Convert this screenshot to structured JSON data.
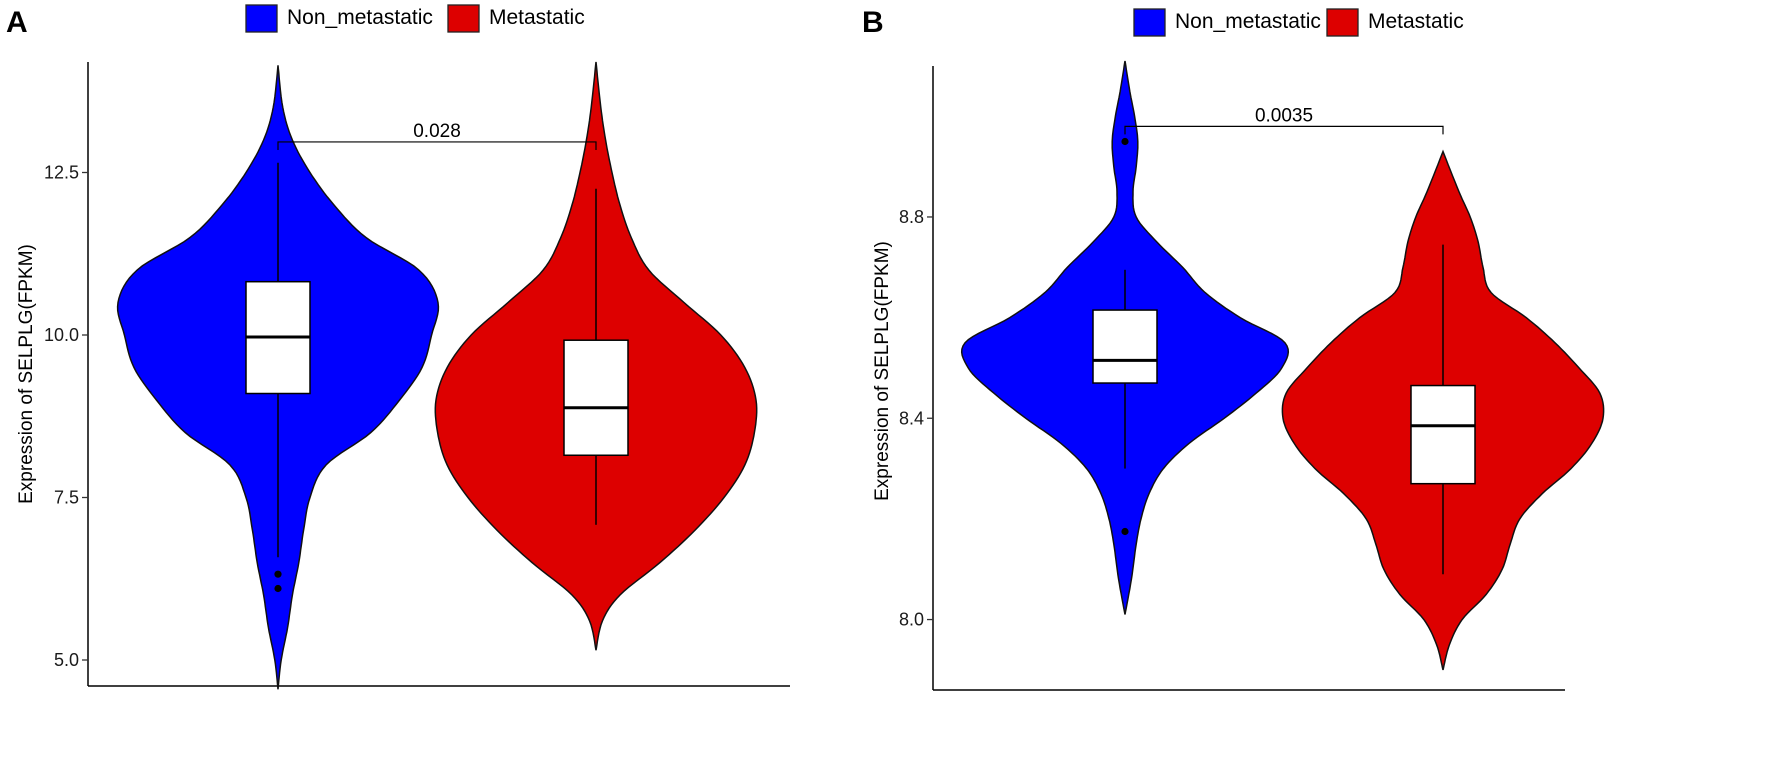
{
  "chart_data": [
    {
      "type": "violin",
      "panel": "A",
      "ylabel": "Expression of SELPLG(FPKM)",
      "yticks": [
        "5.0",
        "7.5",
        "10.0",
        "12.5"
      ],
      "ytick_values": [
        5.0,
        7.5,
        10.0,
        12.5
      ],
      "ylim": [
        4.6,
        14.2
      ],
      "legend": {
        "position": "top-center",
        "entries": [
          {
            "name": "Non_metastatic",
            "color": "#0000ff"
          },
          {
            "name": "Metastatic",
            "color": "#dd0000"
          }
        ]
      },
      "groups": [
        {
          "name": "Non_metastatic",
          "color": "#0000ff",
          "box": {
            "q1": 9.1,
            "median": 9.97,
            "q3": 10.82,
            "whisker_low": 6.58,
            "whisker_high": 12.65
          },
          "outliers": [
            6.32,
            6.1
          ],
          "density_range": [
            4.55,
            14.15
          ],
          "density": [
            [
              4.55,
              0.0
            ],
            [
              5.0,
              0.02
            ],
            [
              5.5,
              0.06
            ],
            [
              6.0,
              0.09
            ],
            [
              6.5,
              0.13
            ],
            [
              7.0,
              0.16
            ],
            [
              7.5,
              0.2
            ],
            [
              8.0,
              0.3
            ],
            [
              8.5,
              0.58
            ],
            [
              9.0,
              0.76
            ],
            [
              9.5,
              0.9
            ],
            [
              10.0,
              0.96
            ],
            [
              10.5,
              1.0
            ],
            [
              11.0,
              0.88
            ],
            [
              11.5,
              0.55
            ],
            [
              12.0,
              0.35
            ],
            [
              12.5,
              0.2
            ],
            [
              13.0,
              0.09
            ],
            [
              13.5,
              0.03
            ],
            [
              14.15,
              0.0
            ]
          ],
          "max_half_width_frac": 0.5
        },
        {
          "name": "Metastatic",
          "color": "#dd0000",
          "box": {
            "q1": 8.15,
            "median": 8.88,
            "q3": 9.92,
            "whisker_low": 7.08,
            "whisker_high": 12.25
          },
          "outliers": [],
          "density_range": [
            5.15,
            14.2
          ],
          "density": [
            [
              5.15,
              0.0
            ],
            [
              5.6,
              0.04
            ],
            [
              6.0,
              0.15
            ],
            [
              6.5,
              0.4
            ],
            [
              7.0,
              0.62
            ],
            [
              7.5,
              0.8
            ],
            [
              8.0,
              0.93
            ],
            [
              8.5,
              0.99
            ],
            [
              9.0,
              1.0
            ],
            [
              9.5,
              0.93
            ],
            [
              10.0,
              0.78
            ],
            [
              10.5,
              0.55
            ],
            [
              11.0,
              0.33
            ],
            [
              11.5,
              0.22
            ],
            [
              12.0,
              0.15
            ],
            [
              12.5,
              0.1
            ],
            [
              13.0,
              0.06
            ],
            [
              13.5,
              0.03
            ],
            [
              14.2,
              0.0
            ]
          ],
          "max_half_width_frac": 0.5
        }
      ],
      "comparison": {
        "label": "0.028",
        "y": 12.97
      }
    },
    {
      "type": "violin",
      "panel": "B",
      "ylabel": "Expression of SELPLG(FPKM)",
      "yticks": [
        "8.0",
        "8.4",
        "8.8"
      ],
      "ytick_values": [
        8.0,
        8.4,
        8.8
      ],
      "ylim": [
        7.86,
        9.1
      ],
      "legend": {
        "position": "top-center",
        "entries": [
          {
            "name": "Non_metastatic",
            "color": "#0000ff"
          },
          {
            "name": "Metastatic",
            "color": "#dd0000"
          }
        ]
      },
      "groups": [
        {
          "name": "Non_metastatic",
          "color": "#0000ff",
          "box": {
            "q1": 8.47,
            "median": 8.515,
            "q3": 8.615,
            "whisker_low": 8.3,
            "whisker_high": 8.695
          },
          "outliers": [
            8.95,
            8.175
          ],
          "density_range": [
            8.01,
            9.11
          ],
          "density": [
            [
              8.01,
              0.0
            ],
            [
              8.08,
              0.04
            ],
            [
              8.15,
              0.07
            ],
            [
              8.2,
              0.1
            ],
            [
              8.25,
              0.15
            ],
            [
              8.3,
              0.24
            ],
            [
              8.35,
              0.4
            ],
            [
              8.4,
              0.62
            ],
            [
              8.45,
              0.82
            ],
            [
              8.5,
              0.98
            ],
            [
              8.55,
              1.0
            ],
            [
              8.6,
              0.72
            ],
            [
              8.65,
              0.5
            ],
            [
              8.7,
              0.36
            ],
            [
              8.75,
              0.2
            ],
            [
              8.8,
              0.07
            ],
            [
              8.85,
              0.05
            ],
            [
              8.9,
              0.07
            ],
            [
              8.95,
              0.08
            ],
            [
              9.0,
              0.06
            ],
            [
              9.05,
              0.03
            ],
            [
              9.11,
              0.0
            ]
          ],
          "max_half_width_frac": 0.5
        },
        {
          "name": "Metastatic",
          "color": "#dd0000",
          "box": {
            "q1": 8.27,
            "median": 8.385,
            "q3": 8.465,
            "whisker_low": 8.09,
            "whisker_high": 8.745
          },
          "outliers": [],
          "density_range": [
            7.9,
            8.93
          ],
          "density": [
            [
              7.9,
              0.0
            ],
            [
              7.95,
              0.04
            ],
            [
              8.0,
              0.12
            ],
            [
              8.05,
              0.27
            ],
            [
              8.1,
              0.37
            ],
            [
              8.15,
              0.42
            ],
            [
              8.2,
              0.48
            ],
            [
              8.25,
              0.62
            ],
            [
              8.3,
              0.8
            ],
            [
              8.35,
              0.93
            ],
            [
              8.4,
              1.0
            ],
            [
              8.45,
              0.98
            ],
            [
              8.5,
              0.85
            ],
            [
              8.55,
              0.7
            ],
            [
              8.6,
              0.52
            ],
            [
              8.65,
              0.3
            ],
            [
              8.7,
              0.25
            ],
            [
              8.75,
              0.22
            ],
            [
              8.8,
              0.17
            ],
            [
              8.85,
              0.1
            ],
            [
              8.93,
              0.0
            ]
          ],
          "max_half_width_frac": 0.5
        }
      ],
      "comparison": {
        "label": "0.0035",
        "y": 8.98
      }
    }
  ]
}
